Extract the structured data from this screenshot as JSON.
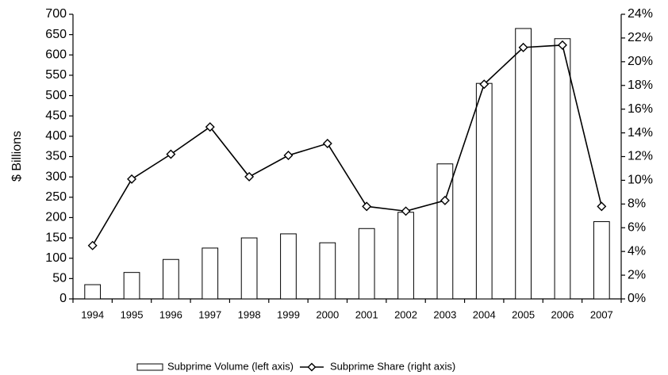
{
  "chart_data": {
    "type": "combo",
    "ylabel": "$ Billions",
    "categories": [
      "1994",
      "1995",
      "1996",
      "1997",
      "1998",
      "1999",
      "2000",
      "2001",
      "2002",
      "2003",
      "2004",
      "2005",
      "2006",
      "2007"
    ],
    "series": [
      {
        "name": "Subprime Volume (left axis)",
        "type": "bar",
        "color": "#ffffff",
        "values": [
          35,
          65,
          97,
          125,
          150,
          160,
          138,
          173,
          213,
          332,
          530,
          665,
          640,
          190
        ]
      },
      {
        "name": "Subprime Share (right axis)",
        "type": "line",
        "axis": "y2",
        "color": "#000000",
        "values": [
          4.5,
          10.1,
          12.2,
          14.5,
          10.3,
          12.1,
          13.1,
          7.8,
          7.4,
          8.3,
          18.1,
          21.2,
          21.4,
          7.8
        ]
      }
    ],
    "ylim": [
      0,
      700
    ],
    "yticks": [
      0,
      50,
      100,
      150,
      200,
      250,
      300,
      350,
      400,
      450,
      500,
      550,
      600,
      650,
      700
    ],
    "y2lim": [
      0,
      24
    ],
    "y2ticks": [
      {
        "value": 0,
        "label": "0%"
      },
      {
        "value": 2,
        "label": "2%"
      },
      {
        "value": 4,
        "label": "4%"
      },
      {
        "value": 6,
        "label": "6%"
      },
      {
        "value": 8,
        "label": "8%"
      },
      {
        "value": 10,
        "label": "10%"
      },
      {
        "value": 12,
        "label": "12%"
      },
      {
        "value": 14,
        "label": "14%"
      },
      {
        "value": 16,
        "label": "16%"
      },
      {
        "value": 18,
        "label": "18%"
      },
      {
        "value": 20,
        "label": "20%"
      },
      {
        "value": 22,
        "label": "22%"
      },
      {
        "value": 24,
        "label": "24%"
      }
    ],
    "legend": "bottom"
  }
}
